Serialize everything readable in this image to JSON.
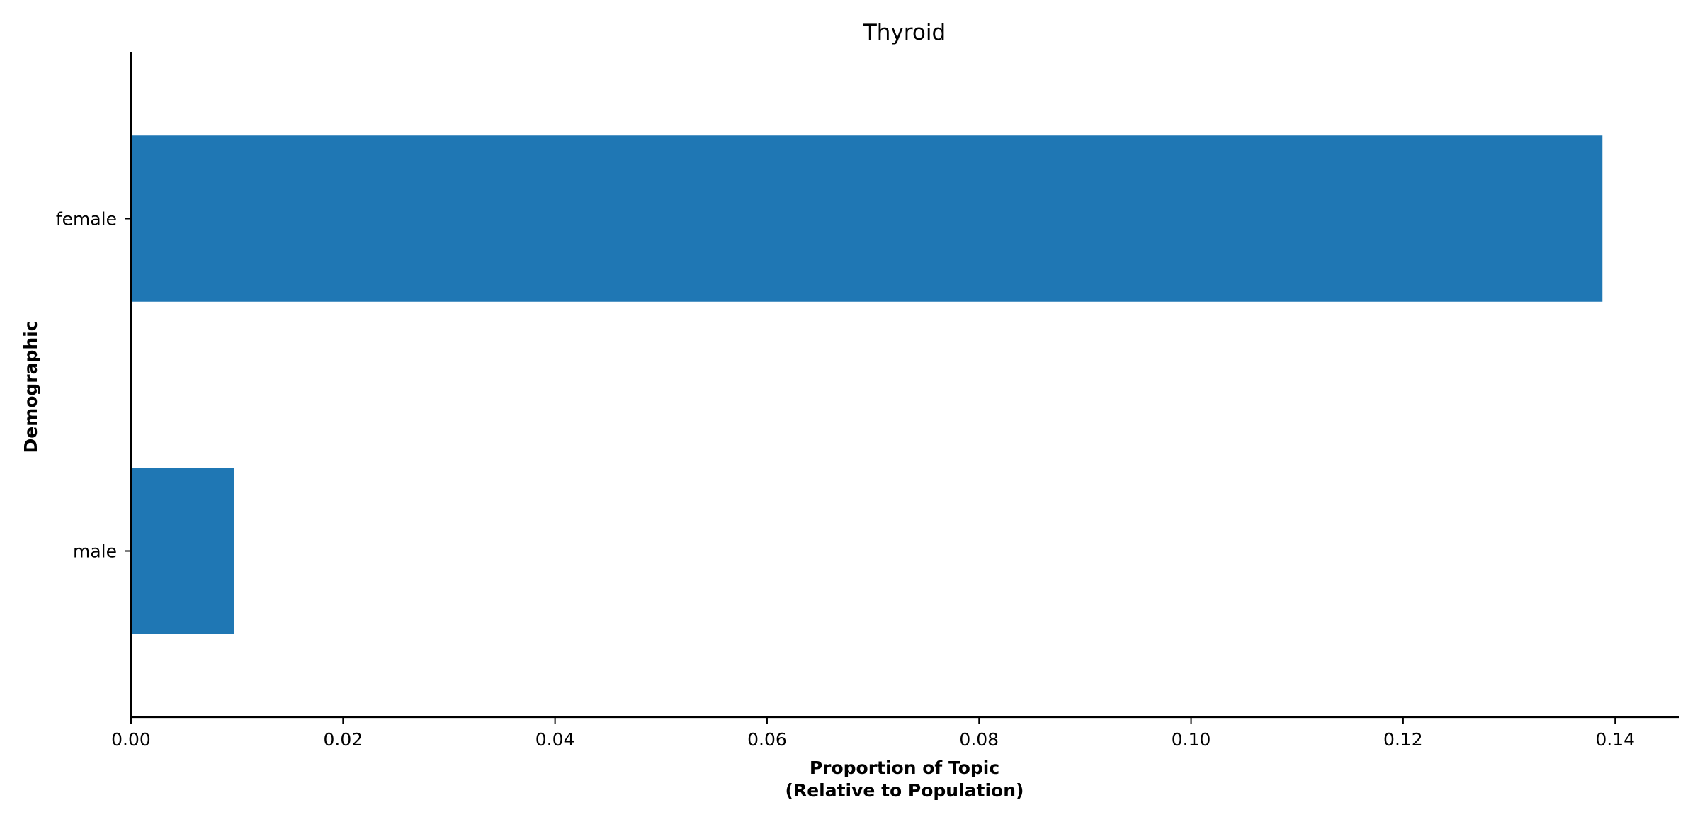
{
  "chart_data": {
    "type": "bar",
    "orientation": "horizontal",
    "title": "Thyroid",
    "xlabel_lines": [
      "Proportion of Topic",
      "(Relative to Population)"
    ],
    "ylabel": "Demographic",
    "categories": [
      "female",
      "male"
    ],
    "values": [
      0.1388,
      0.0097
    ],
    "xlim": [
      0,
      0.146
    ],
    "xticks": [
      0.0,
      0.02,
      0.04,
      0.06,
      0.08,
      0.1,
      0.12,
      0.14
    ],
    "xtick_labels": [
      "0.00",
      "0.02",
      "0.04",
      "0.06",
      "0.08",
      "0.10",
      "0.12",
      "0.14"
    ],
    "grid": false,
    "legend": "none",
    "bar_color": "#1f77b4"
  }
}
